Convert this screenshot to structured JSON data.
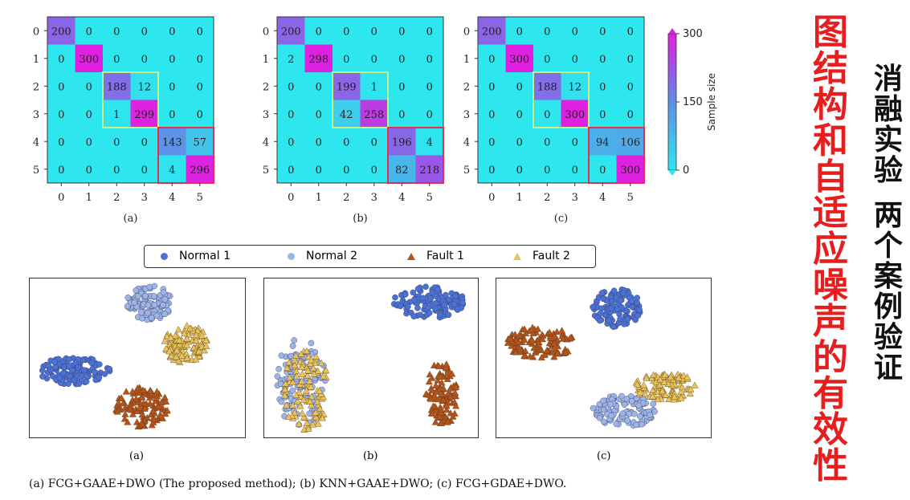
{
  "colors": {
    "cyan": "#2ee6ee",
    "purple": "#a050e6",
    "magenta": "#e020e0",
    "blue_mid": "#5f8fe6",
    "green_box": "#c8f08c",
    "red_box": "#e0304a",
    "normal1": "#4a72d6",
    "normal2": "#9db4e8",
    "fault1": "#b5541b",
    "fault2": "#e8c45a"
  },
  "matrices": [
    {
      "label": "(a)",
      "values": [
        [
          200,
          0,
          0,
          0,
          0,
          0
        ],
        [
          0,
          300,
          0,
          0,
          0,
          0
        ],
        [
          0,
          0,
          188,
          12,
          0,
          0
        ],
        [
          0,
          0,
          1,
          299,
          0,
          0
        ],
        [
          0,
          0,
          0,
          0,
          143,
          57
        ],
        [
          0,
          0,
          0,
          0,
          4,
          296
        ]
      ]
    },
    {
      "label": "(b)",
      "values": [
        [
          200,
          0,
          0,
          0,
          0,
          0
        ],
        [
          2,
          298,
          0,
          0,
          0,
          0
        ],
        [
          0,
          0,
          199,
          1,
          0,
          0
        ],
        [
          0,
          0,
          42,
          258,
          0,
          0
        ],
        [
          0,
          0,
          0,
          0,
          196,
          4
        ],
        [
          0,
          0,
          0,
          0,
          82,
          218
        ]
      ]
    },
    {
      "label": "(c)",
      "values": [
        [
          200,
          0,
          0,
          0,
          0,
          0
        ],
        [
          0,
          300,
          0,
          0,
          0,
          0
        ],
        [
          0,
          0,
          188,
          12,
          0,
          0
        ],
        [
          0,
          0,
          0,
          300,
          0,
          0
        ],
        [
          0,
          0,
          0,
          0,
          94,
          106
        ],
        [
          0,
          0,
          0,
          0,
          0,
          300
        ]
      ]
    }
  ],
  "tick_labels": [
    "0",
    "1",
    "2",
    "3",
    "4",
    "5"
  ],
  "colorbar": {
    "label": "Sample size",
    "ticks": [
      "300",
      "150",
      "0"
    ]
  },
  "legend": {
    "items": [
      {
        "label": "Normal 1",
        "icon": "circle-icon"
      },
      {
        "label": "Normal 2",
        "icon": "circle-icon"
      },
      {
        "label": "Fault 1",
        "icon": "triangle-icon"
      },
      {
        "label": "Fault 2",
        "icon": "triangle-icon"
      }
    ]
  },
  "scatter_labels": [
    "(a)",
    "(b)",
    "(c)"
  ],
  "caption": "(a) FCG+GAAE+DWO (The proposed method); (b) KNN+GAAE+DWO; (c) FCG+GDAE+DWO.",
  "side_title_red": "图结构和自适应噪声的有效性",
  "side_title_black_1": "消融实验",
  "side_title_black_2": "两个案例验证"
}
